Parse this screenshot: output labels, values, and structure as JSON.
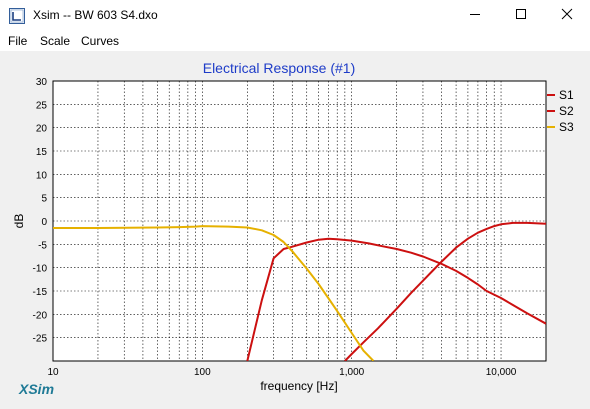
{
  "window": {
    "title": "Xsim -- BW 603 S4.dxo"
  },
  "menu": {
    "items": [
      "File",
      "Scale",
      "Curves"
    ]
  },
  "logo_text": "XSim",
  "colors": {
    "s1": "#cc1010",
    "s2": "#cc1010",
    "s3": "#e6b100",
    "title": "#1e3cc8",
    "logo": "#1f7a96"
  },
  "chart_data": {
    "type": "line",
    "title": "Electrical Response (#1)",
    "xlabel": "frequency [Hz]",
    "ylabel": "dB",
    "xscale": "log",
    "xlim": [
      10,
      20000
    ],
    "ylim": [
      -30,
      30
    ],
    "x_tick_labels": [
      "10",
      "100",
      "1,000",
      "10,000"
    ],
    "y_tick_labels": [
      "30",
      "25",
      "20",
      "15",
      "10",
      "5",
      "0",
      "-5",
      "-10",
      "-15",
      "-20",
      "-25"
    ],
    "grid": true,
    "legend": "right",
    "series": [
      {
        "name": "S1",
        "x": [
          200,
          250,
          300,
          350,
          400,
          500,
          600,
          700,
          800,
          1000,
          1300,
          1600,
          2000,
          2500,
          3000,
          4000,
          5000,
          6000,
          7000,
          8000,
          10000,
          12000,
          15000,
          20000
        ],
        "y": [
          -30,
          -17,
          -8,
          -6,
          -5.5,
          -4.6,
          -4,
          -3.8,
          -3.9,
          -4.2,
          -4.8,
          -5.4,
          -6,
          -6.8,
          -7.6,
          -9.2,
          -10.7,
          -12.2,
          -13.6,
          -15,
          -16.5,
          -18,
          -19.8,
          -22
        ]
      },
      {
        "name": "S2",
        "x": [
          900,
          1000,
          1200,
          1500,
          2000,
          2500,
          3000,
          3500,
          4000,
          5000,
          6000,
          7000,
          8000,
          9000,
          10000,
          12000,
          15000,
          20000
        ],
        "y": [
          -30,
          -28.5,
          -26,
          -23,
          -18.8,
          -15.4,
          -12.8,
          -10.6,
          -8.7,
          -5.7,
          -3.8,
          -2.5,
          -1.7,
          -1.1,
          -0.7,
          -0.4,
          -0.4,
          -0.6
        ]
      },
      {
        "name": "S3",
        "x": [
          10,
          20,
          50,
          70,
          90,
          100,
          150,
          200,
          250,
          300,
          350,
          400,
          500,
          600,
          700,
          800,
          900,
          1000,
          1200,
          1400
        ],
        "y": [
          -1.5,
          -1.5,
          -1.4,
          -1.3,
          -1.2,
          -1.1,
          -1.2,
          -1.4,
          -2,
          -3,
          -4.5,
          -6.5,
          -10.2,
          -13.5,
          -16.6,
          -19.3,
          -21.8,
          -24,
          -27.8,
          -30
        ]
      }
    ]
  }
}
